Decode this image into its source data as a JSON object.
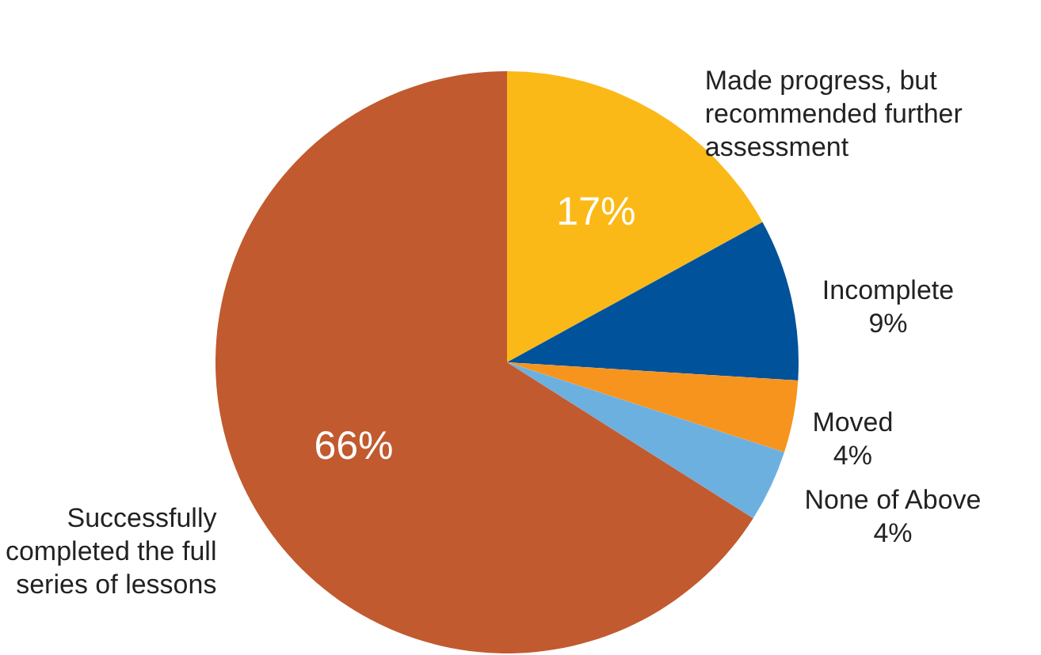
{
  "chart_data": {
    "type": "pie",
    "categories": [
      "Made progress, but recommended further assessment",
      "Incomplete",
      "Moved",
      "None of Above",
      "Successfully completed the full series of lessons"
    ],
    "values": [
      17,
      9,
      4,
      4,
      66
    ],
    "colors": [
      "#fbb917",
      "#00529b",
      "#f7941d",
      "#6cb0e0",
      "#c15a2f"
    ],
    "value_labels": [
      "17%",
      "9%",
      "4%",
      "4%",
      "66%"
    ]
  }
}
